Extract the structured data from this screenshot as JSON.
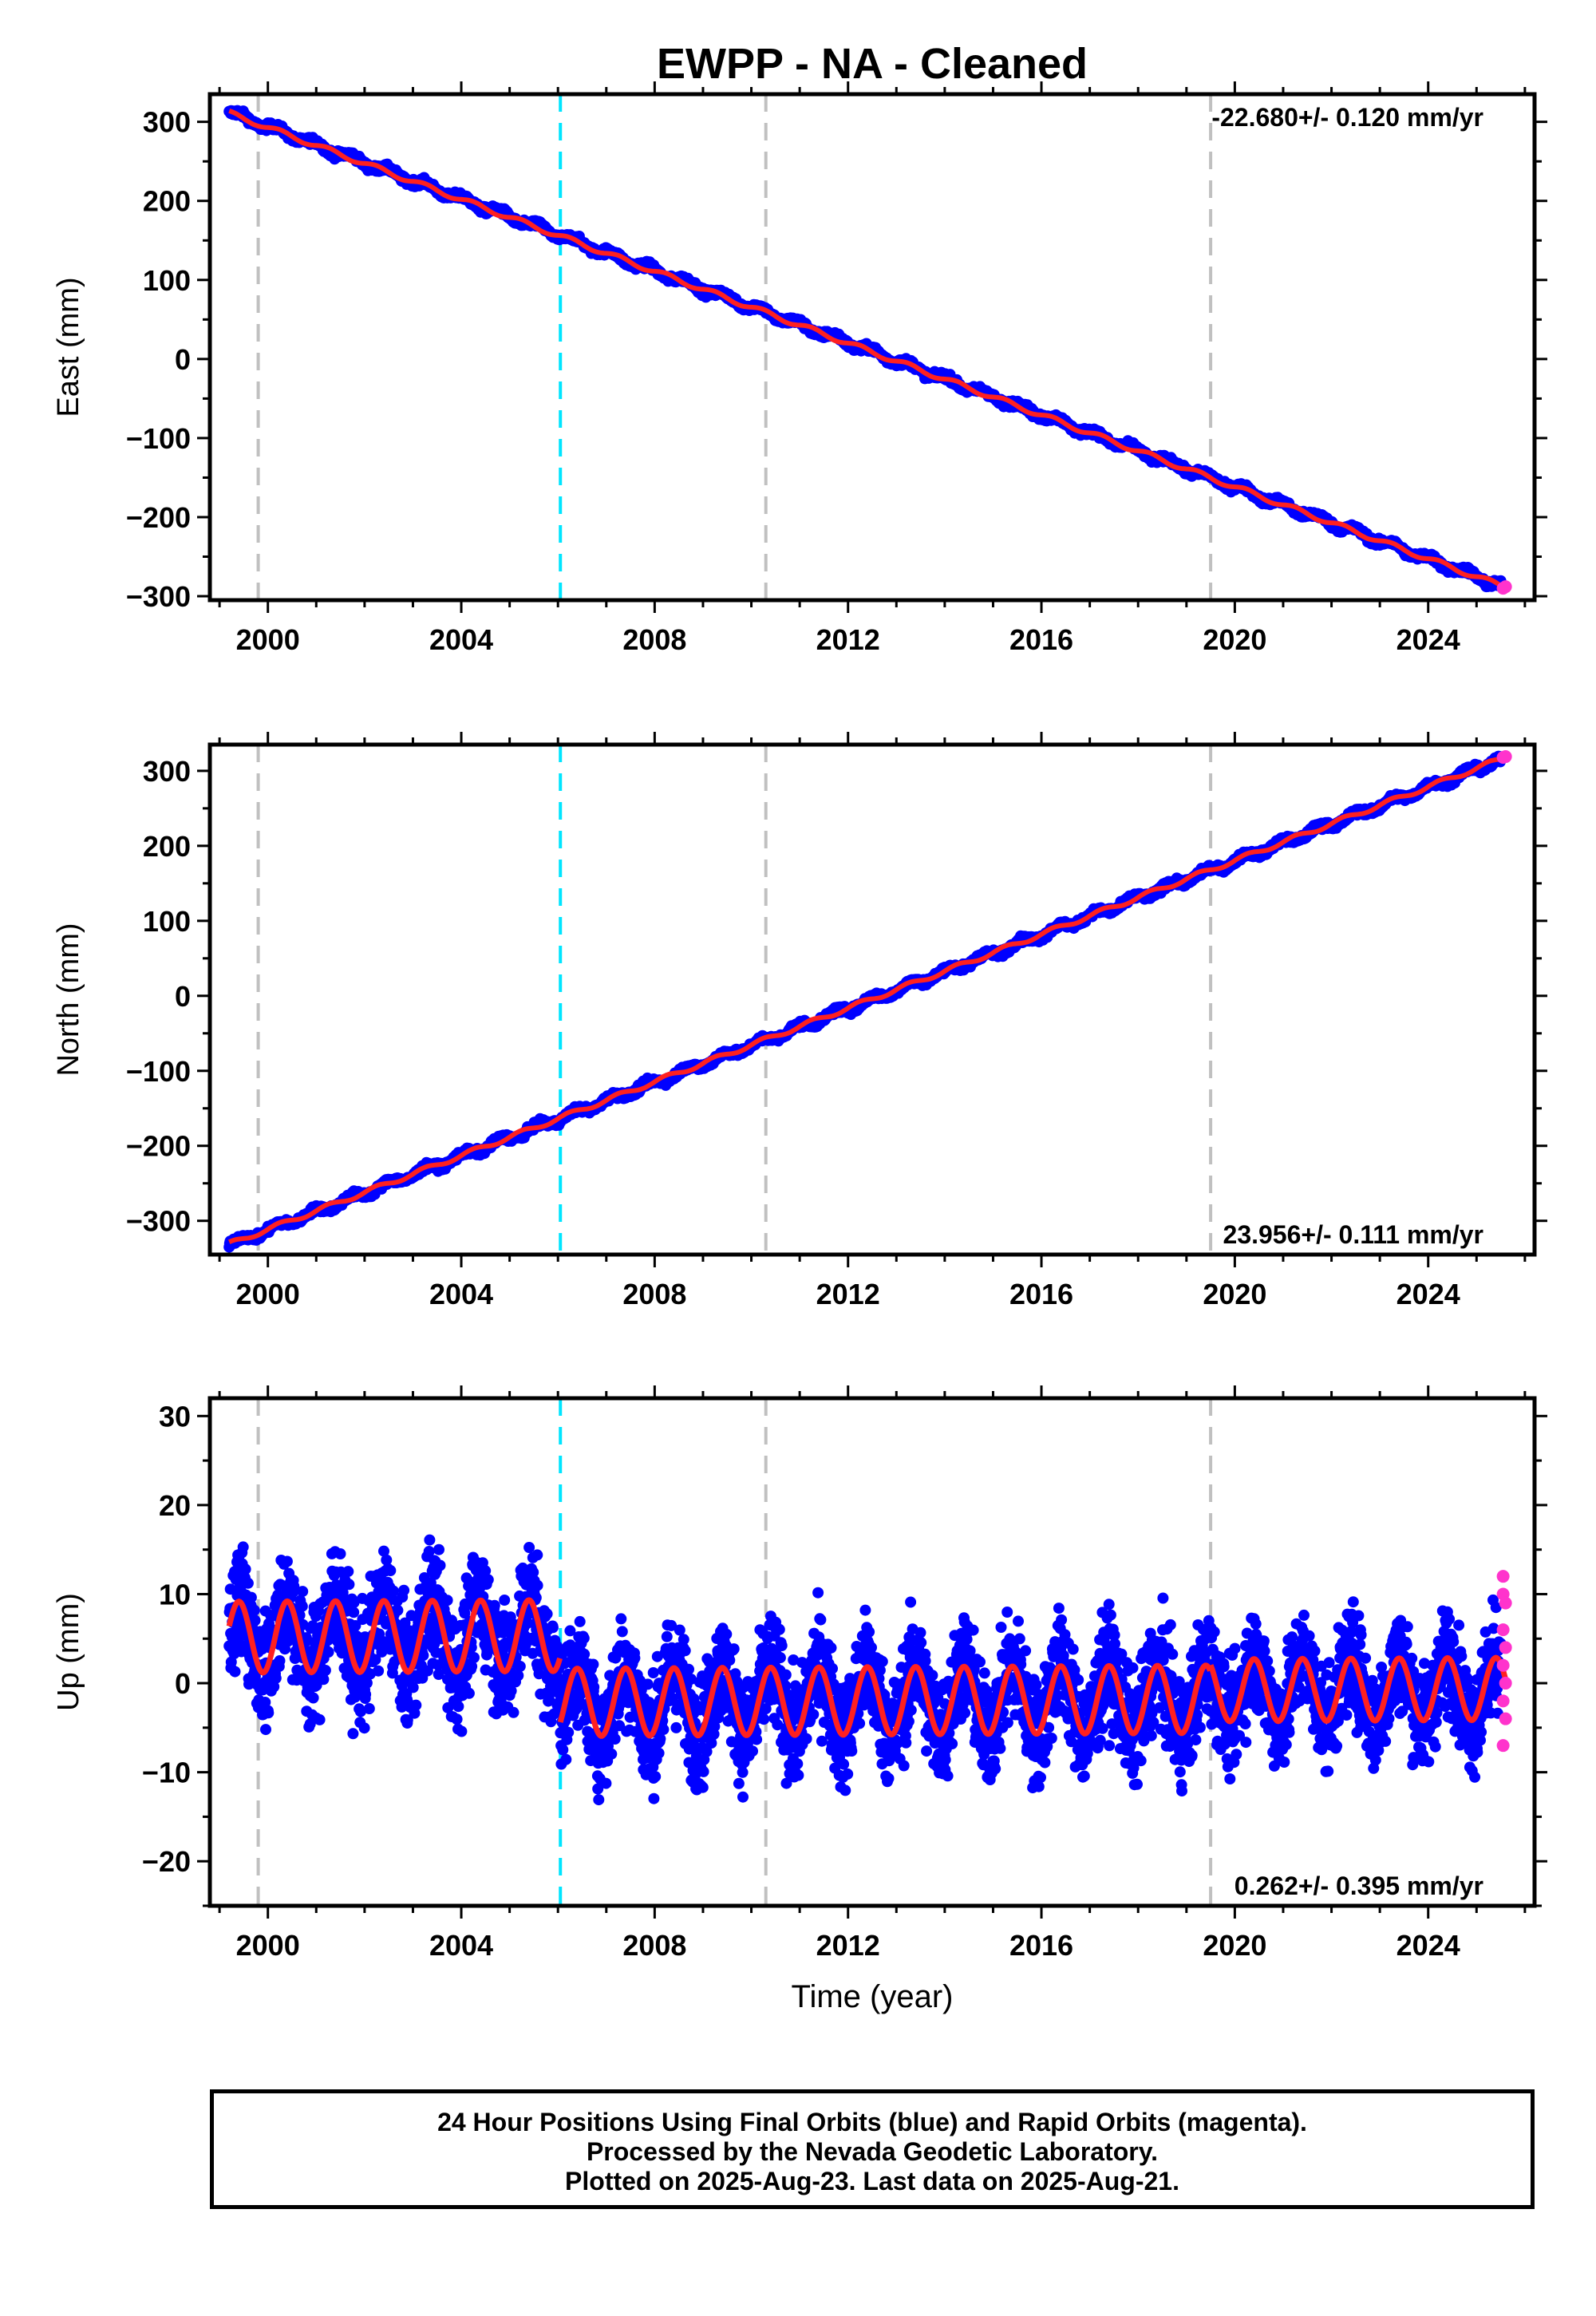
{
  "title": "EWPP  - NA - Cleaned",
  "xlabel": "Time (year)",
  "colors": {
    "final_orbits": "#0000ff",
    "rapid_orbits": "#ff33cc",
    "model": "#ff2020",
    "equipment_change": "#c0c0c0",
    "earthquake": "#00e5ff",
    "frame": "#000000"
  },
  "footer": {
    "line1": "24 Hour Positions Using Final Orbits (blue) and Rapid Orbits (magenta).",
    "line2": "Processed by the Nevada Geodetic Laboratory.",
    "line3": "Plotted on 2025-Aug-23. Last data on 2025-Aug-21."
  },
  "chart_data": [
    {
      "type": "scatter",
      "panel": "east",
      "ylabel": "East (mm)",
      "rate_label": "-22.680+/- 0.120 mm/yr",
      "rate_position": "top-right",
      "xlim": [
        1998.8,
        2026.2
      ],
      "ylim": [
        -305,
        335
      ],
      "xticks": [
        2000,
        2004,
        2008,
        2012,
        2016,
        2020,
        2024
      ],
      "yticks": [
        -300,
        -200,
        -100,
        0,
        100,
        200,
        300
      ],
      "grid": false,
      "rate_mm_per_yr": -22.68,
      "series": [
        {
          "kind": "final",
          "start": [
            1999.2,
            312
          ],
          "end": [
            2025.5,
            -287
          ],
          "scatter_mm": 3
        },
        {
          "kind": "rapid",
          "points": [
            [
              2025.55,
              -290
            ],
            [
              2025.6,
              -288
            ]
          ]
        },
        {
          "kind": "model",
          "start": [
            1999.2,
            311
          ],
          "end": [
            2025.6,
            -289
          ]
        }
      ],
      "vlines": [
        {
          "x": 1999.8,
          "type": "equipment_change"
        },
        {
          "x": 2006.05,
          "type": "earthquake"
        },
        {
          "x": 2010.3,
          "type": "equipment_change"
        },
        {
          "x": 2019.5,
          "type": "equipment_change"
        }
      ]
    },
    {
      "type": "scatter",
      "panel": "north",
      "ylabel": "North (mm)",
      "rate_label": "23.956+/- 0.111 mm/yr",
      "rate_position": "bottom-right",
      "xlim": [
        1998.8,
        2026.2
      ],
      "ylim": [
        -345,
        335
      ],
      "xticks": [
        2000,
        2004,
        2008,
        2012,
        2016,
        2020,
        2024
      ],
      "yticks": [
        -300,
        -200,
        -100,
        0,
        100,
        200,
        300
      ],
      "grid": false,
      "rate_mm_per_yr": 23.956,
      "series": [
        {
          "kind": "final",
          "start": [
            1999.2,
            -332
          ],
          "end": [
            2025.5,
            315
          ],
          "scatter_mm": 3
        },
        {
          "kind": "rapid",
          "points": [
            [
              2025.55,
              318
            ],
            [
              2025.6,
              319
            ]
          ]
        },
        {
          "kind": "model",
          "start": [
            1999.2,
            -331
          ],
          "end": [
            2025.6,
            318
          ]
        }
      ],
      "vlines": [
        {
          "x": 1999.8,
          "type": "equipment_change"
        },
        {
          "x": 2006.05,
          "type": "earthquake"
        },
        {
          "x": 2010.3,
          "type": "equipment_change"
        },
        {
          "x": 2019.5,
          "type": "equipment_change"
        }
      ]
    },
    {
      "type": "scatter",
      "panel": "up",
      "ylabel": "Up (mm)",
      "rate_label": "0.262+/- 0.395 mm/yr",
      "rate_position": "bottom-right",
      "xlim": [
        1998.8,
        2026.2
      ],
      "ylim": [
        -25,
        32
      ],
      "xticks": [
        2000,
        2004,
        2008,
        2012,
        2016,
        2020,
        2024
      ],
      "yticks": [
        -20,
        -10,
        0,
        10,
        20,
        30
      ],
      "grid": false,
      "rate_mm_per_yr": 0.262,
      "segments": [
        {
          "from": 1999.2,
          "to": 2006.05,
          "offset_mm": 5.5,
          "amplitude_mm": 4.0,
          "scatter_mm": 4.5
        },
        {
          "from": 2006.05,
          "to": 2019.5,
          "offset_mm": -2.0,
          "amplitude_mm": 3.8,
          "scatter_mm": 4.2
        },
        {
          "from": 2019.5,
          "to": 2025.6,
          "offset_mm": -1.0,
          "amplitude_mm": 3.5,
          "scatter_mm": 4.0
        }
      ],
      "series": [
        {
          "kind": "rapid",
          "points": [
            [
              2025.55,
              12
            ],
            [
              2025.55,
              10
            ],
            [
              2025.6,
              9
            ],
            [
              2025.55,
              6
            ],
            [
              2025.6,
              4
            ],
            [
              2025.55,
              2
            ],
            [
              2025.6,
              0
            ],
            [
              2025.55,
              -2
            ],
            [
              2025.6,
              -4
            ],
            [
              2025.55,
              -7
            ]
          ]
        }
      ],
      "vlines": [
        {
          "x": 1999.8,
          "type": "equipment_change"
        },
        {
          "x": 2006.05,
          "type": "earthquake"
        },
        {
          "x": 2010.3,
          "type": "equipment_change"
        },
        {
          "x": 2019.5,
          "type": "equipment_change"
        }
      ]
    }
  ]
}
